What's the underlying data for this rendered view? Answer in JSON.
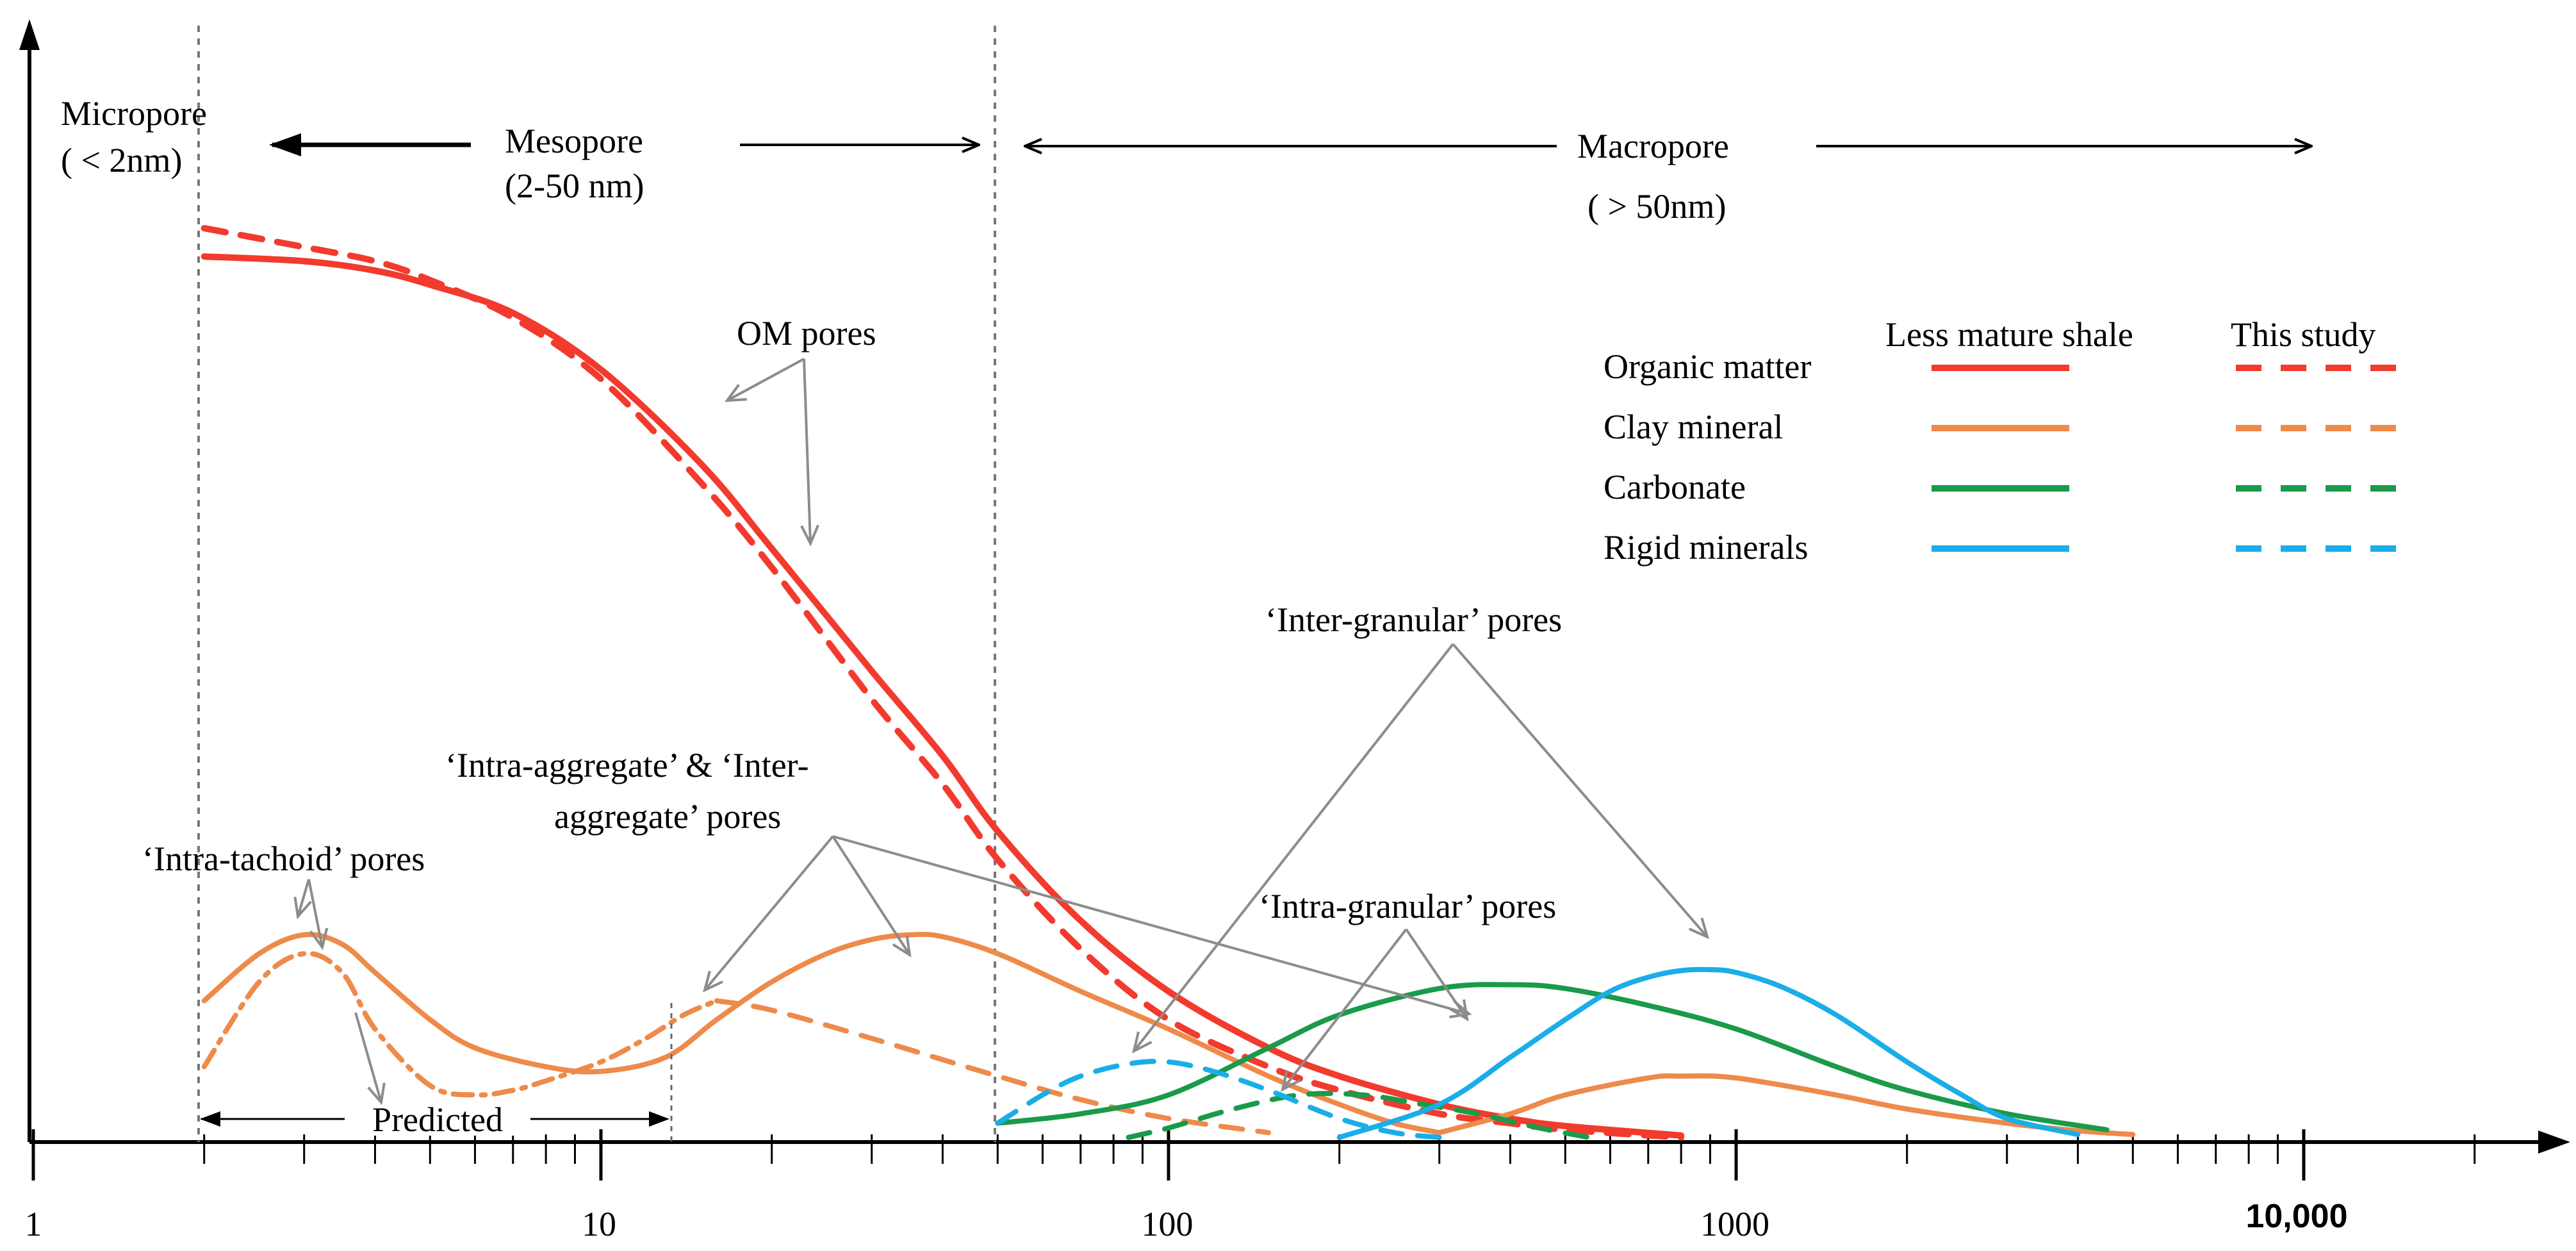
{
  "chart_data": {
    "type": "line",
    "title": "",
    "x_scale": "log",
    "xlim": [
      1,
      30000
    ],
    "ylabel": "",
    "xlabel": "",
    "x_ticks": [
      {
        "value": 1,
        "label": "1"
      },
      {
        "value": 10,
        "label": "10"
      },
      {
        "value": 100,
        "label": "100"
      },
      {
        "value": 1000,
        "label": "1000"
      },
      {
        "value": 10000,
        "label": "10,000"
      }
    ],
    "boundaries_nm": [
      2,
      50
    ],
    "regions": {
      "micropore": {
        "name": "Micropore",
        "range": "( < 2nm)"
      },
      "mesopore": {
        "name": "Mesopore",
        "range": "(2-50 nm)"
      },
      "macropore": {
        "name": "Macropore",
        "range": "( > 50nm)"
      }
    },
    "legend": {
      "col_solid": "Less mature shale",
      "col_dashed": "This study",
      "entries": [
        {
          "label": "Organic matter",
          "color": "#f23a2e"
        },
        {
          "label": "Clay mineral",
          "color": "#ee8a4a"
        },
        {
          "label": "Carbonate",
          "color": "#1a9a4a"
        },
        {
          "label": "Rigid minerals",
          "color": "#1aaee8"
        }
      ]
    },
    "series": [
      {
        "name": "Organic matter - Less mature shale",
        "style": "solid",
        "color": "#f23a2e",
        "x": [
          2,
          3,
          4,
          5,
          7,
          10,
          15,
          20,
          30,
          40,
          50,
          70,
          100,
          150,
          200,
          300,
          400,
          500,
          800
        ],
        "y": [
          0.94,
          0.935,
          0.925,
          0.91,
          0.88,
          0.82,
          0.72,
          0.63,
          0.5,
          0.41,
          0.33,
          0.235,
          0.16,
          0.1,
          0.07,
          0.04,
          0.025,
          0.017,
          0.007
        ]
      },
      {
        "name": "Organic matter - This study",
        "style": "dash",
        "color": "#f23a2e",
        "x": [
          2,
          3,
          4,
          5,
          7,
          10,
          15,
          20,
          30,
          40,
          50,
          70,
          100,
          150,
          200,
          300,
          400,
          500,
          800
        ],
        "y": [
          0.97,
          0.95,
          0.935,
          0.915,
          0.875,
          0.81,
          0.7,
          0.61,
          0.47,
          0.38,
          0.3,
          0.205,
          0.13,
          0.08,
          0.055,
          0.03,
          0.02,
          0.013,
          0.005
        ]
      },
      {
        "name": "Clay mineral - Less mature shale (1)",
        "style": "solid",
        "color": "#ee8a4a",
        "x": [
          2,
          2.5,
          3,
          3.5,
          4,
          5,
          6,
          8,
          10,
          13,
          16,
          20,
          25,
          30,
          35,
          40,
          50,
          70,
          100,
          150,
          200,
          250,
          300
        ],
        "y": [
          0.15,
          0.2,
          0.22,
          0.21,
          0.18,
          0.13,
          0.1,
          0.08,
          0.075,
          0.09,
          0.13,
          0.17,
          0.2,
          0.215,
          0.22,
          0.218,
          0.2,
          0.16,
          0.12,
          0.07,
          0.04,
          0.02,
          0.01
        ]
      },
      {
        "name": "Clay mineral - Less mature shale (2)",
        "style": "solid",
        "color": "#ee8a4a",
        "x": [
          300,
          400,
          500,
          700,
          800,
          1000,
          1500,
          2000,
          3000,
          4000,
          5000
        ],
        "y": [
          0.01,
          0.03,
          0.05,
          0.068,
          0.07,
          0.068,
          0.05,
          0.035,
          0.02,
          0.012,
          0.008
        ]
      },
      {
        "name": "Clay mineral - Predicted",
        "style": "dashdot",
        "color": "#ee8a4a",
        "x": [
          2,
          2.5,
          3,
          3.5,
          4,
          5,
          6,
          7,
          8,
          10,
          12,
          14,
          16
        ],
        "y": [
          0.08,
          0.17,
          0.2,
          0.18,
          0.12,
          0.06,
          0.05,
          0.055,
          0.065,
          0.085,
          0.11,
          0.135,
          0.15
        ]
      },
      {
        "name": "Clay mineral - This study",
        "style": "dash",
        "color": "#ee8a4a",
        "x": [
          16,
          20,
          30,
          50,
          70,
          100,
          150
        ],
        "y": [
          0.15,
          0.14,
          0.11,
          0.07,
          0.045,
          0.025,
          0.01
        ]
      },
      {
        "name": "Carbonate - Less mature shale",
        "style": "solid",
        "color": "#1a9a4a",
        "x": [
          50,
          70,
          100,
          150,
          200,
          300,
          400,
          500,
          700,
          1000,
          1500,
          2000,
          3000,
          4500
        ],
        "y": [
          0.02,
          0.03,
          0.05,
          0.1,
          0.135,
          0.163,
          0.167,
          0.163,
          0.145,
          0.12,
          0.08,
          0.055,
          0.03,
          0.013
        ]
      },
      {
        "name": "Carbonate - This study",
        "style": "dash",
        "color": "#1a9a4a",
        "x": [
          85,
          100,
          130,
          170,
          220,
          280,
          350,
          450,
          550
        ],
        "y": [
          0.005,
          0.015,
          0.035,
          0.05,
          0.05,
          0.04,
          0.03,
          0.015,
          0.005
        ]
      },
      {
        "name": "Rigid minerals - Less mature shale",
        "style": "solid",
        "color": "#1aaee8",
        "x": [
          200,
          300,
          400,
          500,
          600,
          700,
          800,
          900,
          1000,
          1200,
          1500,
          2000,
          2500,
          3000,
          4000
        ],
        "y": [
          0.005,
          0.04,
          0.09,
          0.13,
          0.16,
          0.175,
          0.182,
          0.183,
          0.18,
          0.165,
          0.135,
          0.085,
          0.05,
          0.025,
          0.008
        ]
      },
      {
        "name": "Rigid minerals - This study",
        "style": "dash",
        "color": "#1aaee8",
        "x": [
          50,
          60,
          70,
          85,
          100,
          120,
          150,
          200,
          250,
          300
        ],
        "y": [
          0.02,
          0.05,
          0.07,
          0.083,
          0.085,
          0.075,
          0.055,
          0.025,
          0.01,
          0.005
        ]
      }
    ],
    "annotations": [
      {
        "id": "om",
        "text": "OM pores"
      },
      {
        "id": "ia1",
        "text": "‘Intra-aggregate’  &  ‘Inter-"
      },
      {
        "id": "ia2",
        "text": "aggregate’  pores"
      },
      {
        "id": "tach",
        "text": "‘Intra-tachoid’  pores"
      },
      {
        "id": "ig",
        "text": "‘Inter-granular’  pores"
      },
      {
        "id": "intra",
        "text": "‘Intra-granular’  pores"
      },
      {
        "id": "pred",
        "text": "Predicted"
      }
    ]
  }
}
